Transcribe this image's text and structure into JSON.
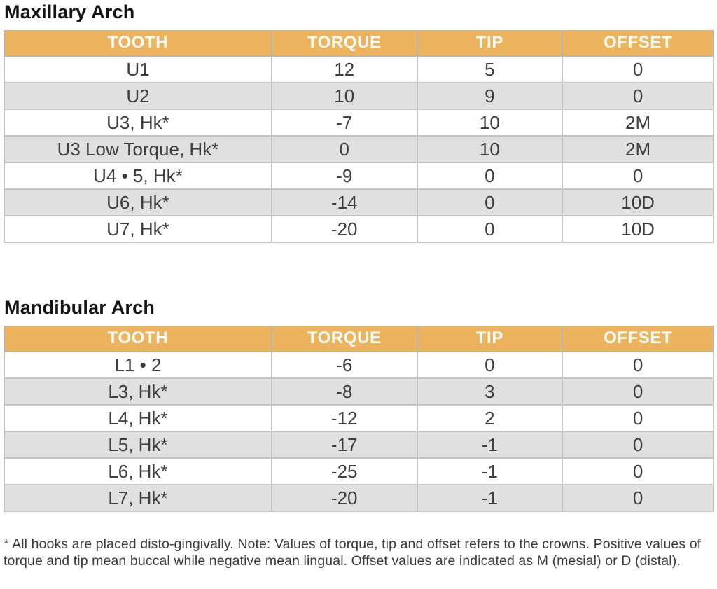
{
  "colors": {
    "header_bg": "#ecb45e",
    "header_text": "#ffffff",
    "row_alt_bg": "#e0e0e0",
    "row_bg": "#ffffff",
    "border": "#b5b5b5",
    "cell_text": "#3d3d3d",
    "title_text": "#141414"
  },
  "tables": [
    {
      "title": "Maxillary Arch",
      "columns": [
        "TOOTH",
        "TORQUE",
        "TIP",
        "OFFSET"
      ],
      "rows": [
        [
          "U1",
          "12",
          "5",
          "0"
        ],
        [
          "U2",
          "10",
          "9",
          "0"
        ],
        [
          "U3, Hk*",
          "-7",
          "10",
          "2M"
        ],
        [
          "U3 Low Torque, Hk*",
          "0",
          "10",
          "2M"
        ],
        [
          "U4 • 5, Hk*",
          "-9",
          "0",
          "0"
        ],
        [
          "U6, Hk*",
          "-14",
          "0",
          "10D"
        ],
        [
          "U7, Hk*",
          "-20",
          "0",
          "10D"
        ]
      ]
    },
    {
      "title": "Mandibular Arch",
      "columns": [
        "TOOTH",
        "TORQUE",
        "TIP",
        "OFFSET"
      ],
      "rows": [
        [
          "L1 • 2",
          "-6",
          "0",
          "0"
        ],
        [
          "L3, Hk*",
          "-8",
          "3",
          "0"
        ],
        [
          "L4, Hk*",
          "-12",
          "2",
          "0"
        ],
        [
          "L5, Hk*",
          "-17",
          "-1",
          "0"
        ],
        [
          "L6, Hk*",
          "-25",
          "-1",
          "0"
        ],
        [
          "L7, Hk*",
          "-20",
          "-1",
          "0"
        ]
      ]
    }
  ],
  "footnote": "* All hooks are placed disto-gingivally. Note: Values of torque, tip and offset refers to the crowns. Positive values of torque and tip mean buccal while negative mean lingual. Offset values are indicated as M (mesial) or D (distal)."
}
